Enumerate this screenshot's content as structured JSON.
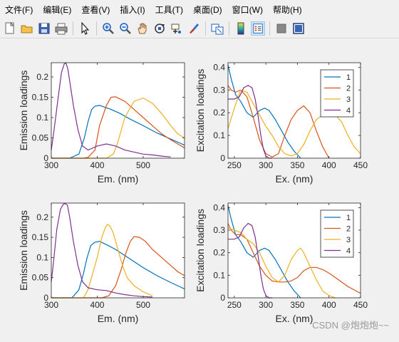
{
  "menubar": {
    "items": [
      "文件(F)",
      "编辑(E)",
      "查看(V)",
      "插入(I)",
      "工具(T)",
      "桌面(D)",
      "窗口(W)",
      "帮助(H)"
    ]
  },
  "toolbar": {
    "buttons": [
      "new-figure-icon",
      "open-folder-icon",
      "save-icon",
      "print-icon",
      "pointer-icon",
      "zoom-in-icon",
      "zoom-out-icon",
      "pan-icon",
      "rotate-3d-icon",
      "data-cursor-icon",
      "brush-icon",
      "link-plot-icon",
      "colorbar-icon",
      "legend-icon",
      "hide-plot-tools-icon",
      "show-plot-tools-icon"
    ]
  },
  "watermark": "CSDN @炮炮炮~~",
  "chart_data": [
    {
      "type": "line",
      "xlabel": "Em. (nm)",
      "ylabel": "Emission loadings",
      "xlim": [
        300,
        590
      ],
      "ylim": [
        0,
        0.235
      ],
      "xticks": [
        300,
        400,
        500
      ],
      "yticks": [
        0,
        0.05,
        0.1,
        0.15,
        0.2
      ],
      "series": [
        {
          "color": "#0072bd",
          "x": [
            300,
            340,
            360,
            372,
            380,
            388,
            395,
            405,
            415,
            430,
            450,
            470,
            500,
            530,
            560,
            590
          ],
          "y": [
            0,
            0,
            0.01,
            0.05,
            0.09,
            0.12,
            0.128,
            0.13,
            0.126,
            0.12,
            0.11,
            0.097,
            0.08,
            0.062,
            0.047,
            0.032
          ]
        },
        {
          "color": "#d95319",
          "x": [
            300,
            370,
            380,
            395,
            405,
            420,
            430,
            440,
            460,
            480,
            500,
            520,
            540,
            560,
            590
          ],
          "y": [
            0,
            0,
            0.002,
            0.02,
            0.08,
            0.13,
            0.15,
            0.151,
            0.14,
            0.12,
            0.1,
            0.08,
            0.06,
            0.045,
            0.025
          ]
        },
        {
          "color": "#edb120",
          "x": [
            300,
            420,
            435,
            445,
            460,
            480,
            500,
            520,
            540,
            560,
            575,
            590
          ],
          "y": [
            0,
            0,
            0.01,
            0.04,
            0.1,
            0.14,
            0.148,
            0.135,
            0.11,
            0.08,
            0.06,
            0.05
          ]
        },
        {
          "color": "#7e2f8e",
          "x": [
            300,
            305,
            315,
            322,
            328,
            332,
            336,
            340,
            348,
            358,
            368,
            380,
            400,
            420,
            440,
            460,
            480,
            500,
            520,
            540,
            560
          ],
          "y": [
            0.02,
            0.06,
            0.15,
            0.21,
            0.232,
            0.234,
            0.22,
            0.19,
            0.13,
            0.07,
            0.03,
            0.02,
            0.03,
            0.035,
            0.03,
            0.02,
            0.015,
            0.01,
            0.008,
            0.005,
            0.003
          ]
        }
      ]
    },
    {
      "type": "line",
      "xlabel": "Ex. (nm)",
      "ylabel": "Excitation loadings",
      "xlim": [
        240,
        450
      ],
      "ylim": [
        0,
        0.42
      ],
      "xticks": [
        250,
        300,
        350,
        400,
        450
      ],
      "yticks": [
        0,
        0.1,
        0.2,
        0.3,
        0.4
      ],
      "legend": {
        "labels": [
          "1",
          "2",
          "3",
          "4"
        ],
        "position": "top-right"
      },
      "series": [
        {
          "name": "1",
          "color": "#0072bd",
          "x": [
            240,
            245,
            252,
            260,
            270,
            280,
            290,
            298,
            305,
            315,
            325,
            335,
            345,
            355
          ],
          "y": [
            0.41,
            0.35,
            0.28,
            0.25,
            0.2,
            0.18,
            0.21,
            0.22,
            0.21,
            0.17,
            0.12,
            0.07,
            0.03,
            0
          ]
        },
        {
          "name": "2",
          "color": "#d95319",
          "x": [
            240,
            245,
            252,
            260,
            270,
            280,
            290,
            300,
            310,
            320,
            330,
            340,
            350,
            360,
            370,
            380,
            390,
            400
          ],
          "y": [
            0.32,
            0.3,
            0.29,
            0.3,
            0.27,
            0.18,
            0.08,
            0.02,
            0.005,
            0.02,
            0.1,
            0.17,
            0.21,
            0.23,
            0.2,
            0.12,
            0.05,
            0
          ]
        },
        {
          "name": "3",
          "color": "#edb120",
          "x": [
            240,
            250,
            260,
            270,
            280,
            290,
            300,
            310,
            320,
            330,
            340,
            350,
            360,
            370,
            380,
            390,
            400,
            410,
            420,
            430,
            440,
            450
          ],
          "y": [
            0.13,
            0.22,
            0.3,
            0.29,
            0.24,
            0.19,
            0.14,
            0.1,
            0.05,
            0.02,
            0.01,
            0.02,
            0.06,
            0.12,
            0.17,
            0.19,
            0.195,
            0.19,
            0.16,
            0.1,
            0.05,
            0.02
          ]
        },
        {
          "name": "4",
          "color": "#7e2f8e",
          "x": [
            240,
            250,
            258,
            265,
            272,
            278,
            283,
            288,
            292,
            296,
            300,
            305,
            310
          ],
          "y": [
            0.26,
            0.26,
            0.27,
            0.31,
            0.32,
            0.31,
            0.26,
            0.18,
            0.1,
            0.04,
            0.01,
            0,
            0
          ]
        }
      ]
    },
    {
      "type": "line",
      "xlabel": "Em. (nm)",
      "ylabel": "Emission loadings",
      "xlim": [
        300,
        590
      ],
      "ylim": [
        0,
        0.235
      ],
      "xticks": [
        300,
        400,
        500
      ],
      "yticks": [
        0,
        0.05,
        0.1,
        0.15,
        0.2
      ],
      "series": [
        {
          "color": "#0072bd",
          "x": [
            300,
            345,
            360,
            370,
            378,
            386,
            395,
            405,
            420,
            440,
            460,
            480,
            500,
            530,
            560,
            590
          ],
          "y": [
            0,
            0,
            0.02,
            0.06,
            0.1,
            0.13,
            0.138,
            0.14,
            0.132,
            0.12,
            0.105,
            0.09,
            0.075,
            0.055,
            0.038,
            0.022
          ]
        },
        {
          "color": "#d95319",
          "x": [
            300,
            410,
            425,
            440,
            452,
            462,
            472,
            480,
            492,
            505,
            520,
            540,
            560,
            575,
            590
          ],
          "y": [
            0,
            0,
            0.005,
            0.03,
            0.07,
            0.11,
            0.14,
            0.152,
            0.15,
            0.14,
            0.12,
            0.1,
            0.08,
            0.065,
            0.055
          ]
        },
        {
          "color": "#edb120",
          "x": [
            300,
            370,
            380,
            390,
            400,
            410,
            418,
            422,
            428,
            435,
            445,
            455,
            465,
            480,
            500,
            520
          ],
          "y": [
            0,
            0,
            0.02,
            0.06,
            0.1,
            0.15,
            0.175,
            0.182,
            0.178,
            0.16,
            0.12,
            0.08,
            0.05,
            0.03,
            0.015,
            0.005
          ]
        },
        {
          "color": "#7e2f8e",
          "x": [
            300,
            305,
            312,
            320,
            326,
            330,
            335,
            340,
            348,
            358,
            368,
            380,
            400,
            420,
            440,
            460,
            480,
            500,
            520
          ],
          "y": [
            0.04,
            0.09,
            0.17,
            0.22,
            0.232,
            0.234,
            0.23,
            0.2,
            0.14,
            0.08,
            0.04,
            0.025,
            0.02,
            0.018,
            0.012,
            0.008,
            0.005,
            0.003,
            0.002
          ]
        }
      ]
    },
    {
      "type": "line",
      "xlabel": "Ex. (nm)",
      "ylabel": "Excitation loadings",
      "xlim": [
        240,
        450
      ],
      "ylim": [
        0,
        0.42
      ],
      "xticks": [
        250,
        300,
        350,
        400,
        450
      ],
      "yticks": [
        0,
        0.1,
        0.2,
        0.3,
        0.4
      ],
      "legend": {
        "labels": [
          "1",
          "2",
          "3",
          "4"
        ],
        "position": "top-right"
      },
      "series": [
        {
          "name": "1",
          "color": "#0072bd",
          "x": [
            240,
            245,
            252,
            260,
            270,
            280,
            290,
            298,
            305,
            315,
            325,
            335,
            345,
            355
          ],
          "y": [
            0.41,
            0.35,
            0.28,
            0.25,
            0.2,
            0.18,
            0.21,
            0.22,
            0.21,
            0.17,
            0.12,
            0.07,
            0.03,
            0
          ]
        },
        {
          "name": "2",
          "color": "#d95319",
          "x": [
            240,
            245,
            252,
            260,
            270,
            280,
            290,
            300,
            310,
            320,
            330,
            340,
            350,
            360,
            370,
            380,
            390,
            400,
            410,
            420,
            430,
            440,
            450
          ],
          "y": [
            0.33,
            0.3,
            0.28,
            0.28,
            0.26,
            0.2,
            0.14,
            0.1,
            0.075,
            0.07,
            0.07,
            0.075,
            0.09,
            0.12,
            0.135,
            0.135,
            0.125,
            0.11,
            0.09,
            0.07,
            0.05,
            0.035,
            0.02
          ]
        },
        {
          "name": "3",
          "color": "#edb120",
          "x": [
            240,
            250,
            260,
            270,
            280,
            290,
            300,
            310,
            320,
            330,
            340,
            350,
            355,
            360,
            370,
            380,
            390,
            400,
            410
          ],
          "y": [
            0.31,
            0.3,
            0.29,
            0.26,
            0.24,
            0.2,
            0.14,
            0.09,
            0.07,
            0.1,
            0.17,
            0.21,
            0.22,
            0.2,
            0.14,
            0.08,
            0.03,
            0.01,
            0
          ]
        },
        {
          "name": "4",
          "color": "#7e2f8e",
          "x": [
            240,
            250,
            258,
            265,
            272,
            278,
            283,
            288,
            292,
            296,
            300,
            305,
            310
          ],
          "y": [
            0.26,
            0.26,
            0.27,
            0.31,
            0.33,
            0.32,
            0.27,
            0.18,
            0.1,
            0.04,
            0.01,
            0,
            0
          ]
        }
      ]
    }
  ]
}
